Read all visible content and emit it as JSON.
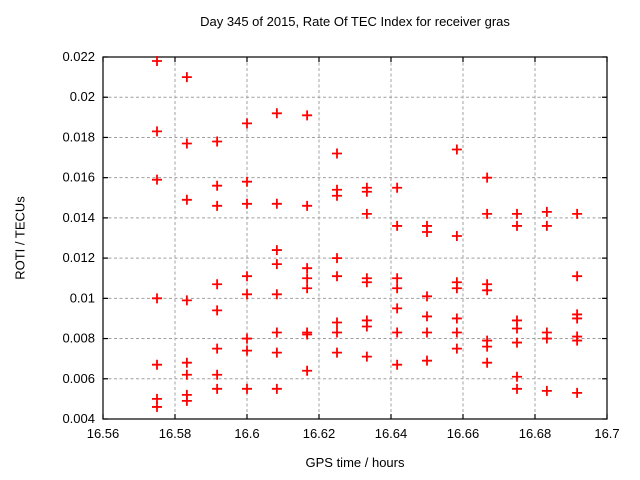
{
  "chart_data": {
    "type": "scatter",
    "title": "Day 345 of 2015, Rate Of TEC Index for receiver gras",
    "xlabel": "GPS time / hours",
    "ylabel": "ROTI / TECUs",
    "xlim": [
      16.56,
      16.7
    ],
    "ylim": [
      0.004,
      0.022
    ],
    "grid": true,
    "legend": "none",
    "marker": {
      "shape": "plus",
      "color": "#ff0000",
      "size": 11
    },
    "colors": {
      "background": "#ffffff",
      "border": "#000000",
      "gridline": "#a0a0a0",
      "text": "#000000",
      "points": "#ff0000"
    },
    "x_ticks": {
      "values": [
        16.56,
        16.58,
        16.6,
        16.62,
        16.64,
        16.66,
        16.68,
        16.7
      ],
      "labels": [
        "16.56",
        "16.58",
        "16.6",
        "16.62",
        "16.64",
        "16.66",
        "16.68",
        "16.7"
      ]
    },
    "y_ticks": {
      "values": [
        0.004,
        0.006,
        0.008,
        0.01,
        0.012,
        0.014,
        0.016,
        0.018,
        0.02,
        0.022
      ],
      "labels": [
        "0.004",
        "0.006",
        "0.008",
        "0.01",
        "0.012",
        "0.014",
        "0.016",
        "0.018",
        "0.02",
        "0.022"
      ]
    },
    "series": [
      {
        "name": "ROTI",
        "points": [
          [
            16.575,
            0.0218
          ],
          [
            16.575,
            0.0183
          ],
          [
            16.575,
            0.0159
          ],
          [
            16.575,
            0.01
          ],
          [
            16.575,
            0.0067
          ],
          [
            16.575,
            0.005
          ],
          [
            16.575,
            0.0046
          ],
          [
            16.5833,
            0.021
          ],
          [
            16.5833,
            0.0177
          ],
          [
            16.5833,
            0.0149
          ],
          [
            16.5833,
            0.0099
          ],
          [
            16.5833,
            0.0068
          ],
          [
            16.5833,
            0.0062
          ],
          [
            16.5833,
            0.0052
          ],
          [
            16.5833,
            0.0049
          ],
          [
            16.5917,
            0.0178
          ],
          [
            16.5917,
            0.0156
          ],
          [
            16.5917,
            0.0146
          ],
          [
            16.5917,
            0.0107
          ],
          [
            16.5917,
            0.0094
          ],
          [
            16.5917,
            0.0075
          ],
          [
            16.5917,
            0.0062
          ],
          [
            16.5917,
            0.0055
          ],
          [
            16.6,
            0.0187
          ],
          [
            16.6,
            0.0158
          ],
          [
            16.6,
            0.0147
          ],
          [
            16.6,
            0.0111
          ],
          [
            16.6,
            0.0102
          ],
          [
            16.6,
            0.008
          ],
          [
            16.6,
            0.0074
          ],
          [
            16.6,
            0.0055
          ],
          [
            16.6083,
            0.0192
          ],
          [
            16.6083,
            0.0147
          ],
          [
            16.6083,
            0.0124
          ],
          [
            16.6083,
            0.0117
          ],
          [
            16.6083,
            0.0102
          ],
          [
            16.6083,
            0.0083
          ],
          [
            16.6083,
            0.0073
          ],
          [
            16.6083,
            0.0055
          ],
          [
            16.6167,
            0.0191
          ],
          [
            16.6167,
            0.0146
          ],
          [
            16.6167,
            0.0115
          ],
          [
            16.6167,
            0.011
          ],
          [
            16.6167,
            0.0105
          ],
          [
            16.6167,
            0.0083
          ],
          [
            16.6167,
            0.0082
          ],
          [
            16.6167,
            0.0064
          ],
          [
            16.625,
            0.0172
          ],
          [
            16.625,
            0.0154
          ],
          [
            16.625,
            0.0151
          ],
          [
            16.625,
            0.012
          ],
          [
            16.625,
            0.0111
          ],
          [
            16.625,
            0.0088
          ],
          [
            16.625,
            0.0083
          ],
          [
            16.625,
            0.0073
          ],
          [
            16.6333,
            0.0155
          ],
          [
            16.6333,
            0.0153
          ],
          [
            16.6333,
            0.0142
          ],
          [
            16.6333,
            0.011
          ],
          [
            16.6333,
            0.0108
          ],
          [
            16.6333,
            0.0089
          ],
          [
            16.6333,
            0.0086
          ],
          [
            16.6333,
            0.0071
          ],
          [
            16.6417,
            0.0155
          ],
          [
            16.6417,
            0.0136
          ],
          [
            16.6417,
            0.011
          ],
          [
            16.6417,
            0.0105
          ],
          [
            16.6417,
            0.0095
          ],
          [
            16.6417,
            0.0083
          ],
          [
            16.6417,
            0.0067
          ],
          [
            16.65,
            0.0136
          ],
          [
            16.65,
            0.0133
          ],
          [
            16.65,
            0.0101
          ],
          [
            16.65,
            0.0091
          ],
          [
            16.65,
            0.0083
          ],
          [
            16.65,
            0.0069
          ],
          [
            16.6583,
            0.0174
          ],
          [
            16.6583,
            0.0131
          ],
          [
            16.6583,
            0.0108
          ],
          [
            16.6583,
            0.0105
          ],
          [
            16.6583,
            0.009
          ],
          [
            16.6583,
            0.0083
          ],
          [
            16.6583,
            0.0075
          ],
          [
            16.6667,
            0.016
          ],
          [
            16.6667,
            0.0142
          ],
          [
            16.6667,
            0.0107
          ],
          [
            16.6667,
            0.0104
          ],
          [
            16.6667,
            0.0079
          ],
          [
            16.6667,
            0.0076
          ],
          [
            16.6667,
            0.0068
          ],
          [
            16.675,
            0.0142
          ],
          [
            16.675,
            0.0136
          ],
          [
            16.675,
            0.0089
          ],
          [
            16.675,
            0.0085
          ],
          [
            16.675,
            0.0078
          ],
          [
            16.675,
            0.0061
          ],
          [
            16.675,
            0.0055
          ],
          [
            16.6833,
            0.0143
          ],
          [
            16.6833,
            0.0136
          ],
          [
            16.6833,
            0.0083
          ],
          [
            16.6833,
            0.008
          ],
          [
            16.6833,
            0.0054
          ],
          [
            16.6917,
            0.0142
          ],
          [
            16.6917,
            0.0111
          ],
          [
            16.6917,
            0.0092
          ],
          [
            16.6917,
            0.009
          ],
          [
            16.6917,
            0.0081
          ],
          [
            16.6917,
            0.0079
          ],
          [
            16.6917,
            0.0053
          ]
        ]
      }
    ]
  }
}
